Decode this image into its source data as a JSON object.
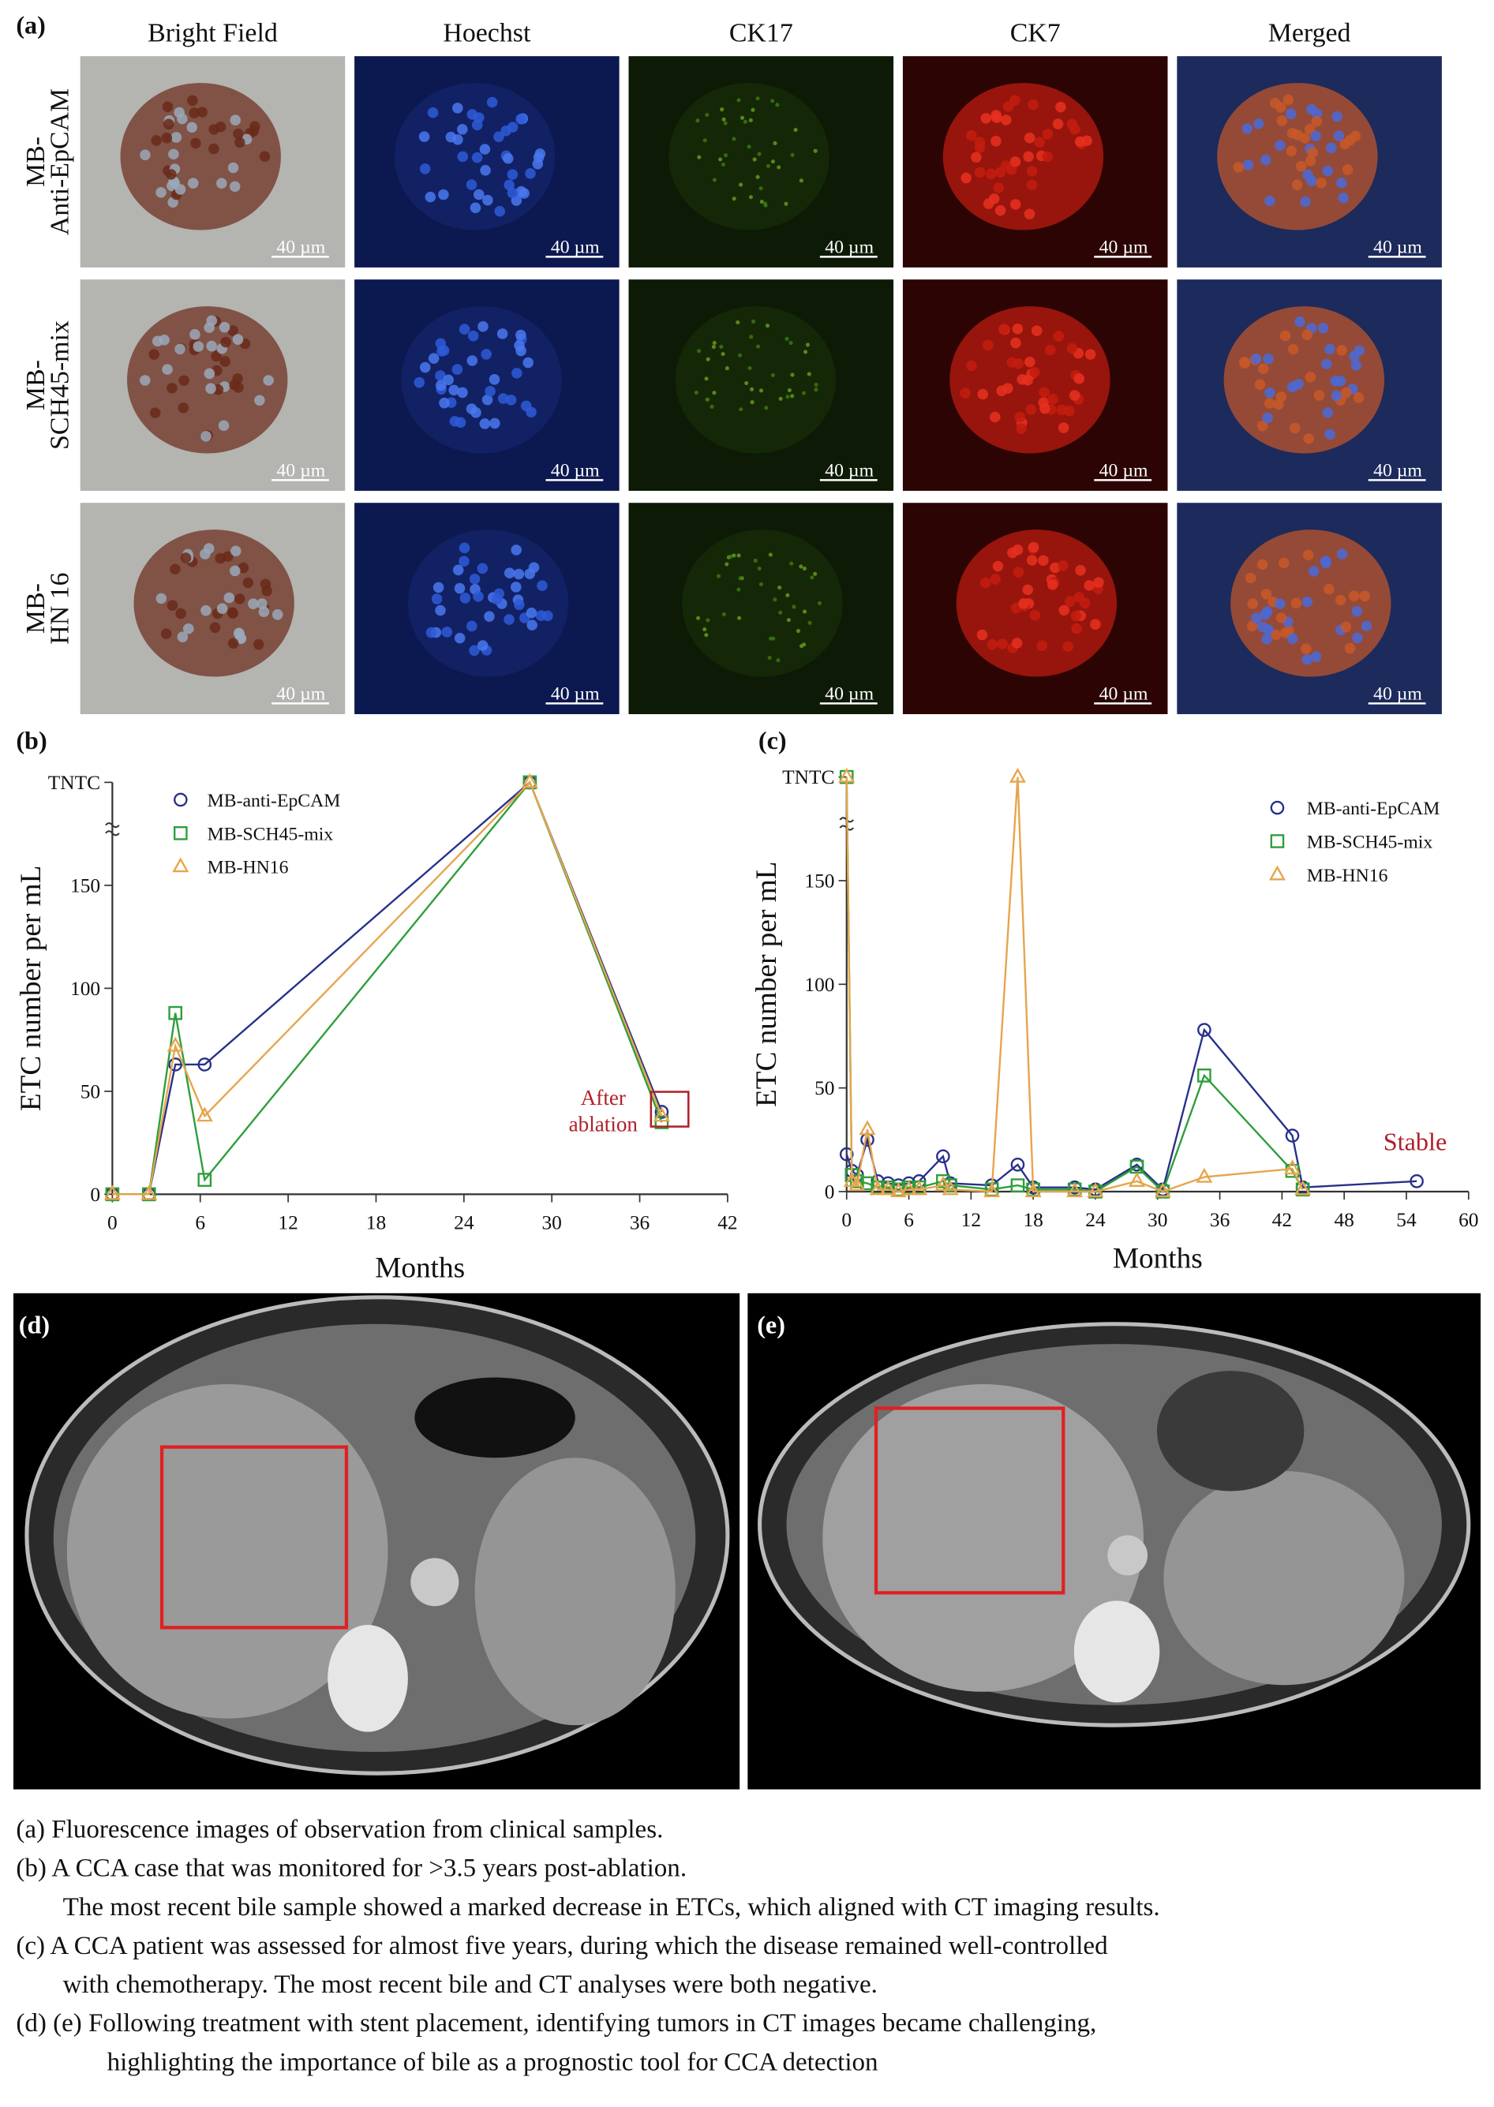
{
  "panel_labels": [
    "(a)",
    "(b)",
    "(c)",
    "(d)",
    "(e)"
  ],
  "micrographs": {
    "columns": [
      "Bright Field",
      "Hoechst",
      "CK17",
      "CK7",
      "Merged"
    ],
    "rows": [
      [
        "MB-",
        "Anti-EpCAM"
      ],
      [
        "MB-",
        "SCH45-mix"
      ],
      [
        "MB-",
        "HN 16"
      ]
    ],
    "scale_bar": "40 µm"
  },
  "chart_data": [
    {
      "type": "line",
      "x_label": "Months",
      "y_label": "ETC number per mL",
      "x": [
        0,
        2.5,
        4.3,
        6.3,
        28.5,
        37.5
      ],
      "xlim": [
        0,
        42
      ],
      "xticks": [
        0,
        6,
        12,
        18,
        24,
        30,
        36,
        42
      ],
      "ylim": [
        0,
        200
      ],
      "yticks": [
        0,
        50,
        100,
        150,
        {
          "value": 200,
          "label": "TNTC"
        }
      ],
      "legend": "upper left",
      "series": [
        {
          "name": "MB-anti-EpCAM",
          "color": "#27318a",
          "marker": "circle",
          "values": [
            0,
            0,
            63,
            63,
            200,
            40
          ]
        },
        {
          "name": "MB-SCH45-mix",
          "color": "#2e9e3a",
          "marker": "square",
          "values": [
            0,
            0,
            88,
            7,
            200,
            35
          ]
        },
        {
          "name": "MB-HN16",
          "color": "#e6a54c",
          "marker": "triangle",
          "values": [
            0,
            0,
            72,
            38,
            200,
            38
          ]
        }
      ],
      "annotation": [
        "After",
        "ablation"
      ],
      "annotation_color": "#b0202a"
    },
    {
      "type": "line",
      "x_label": "Months",
      "y_label": "ETC number per mL",
      "x": [
        0,
        0.5,
        1,
        2,
        3,
        4,
        5,
        6,
        7,
        9.3,
        10,
        14,
        16.5,
        18,
        22,
        24,
        28,
        30.5,
        34.5,
        43,
        44,
        55
      ],
      "xlim": [
        0,
        60
      ],
      "xticks": [
        0,
        6,
        12,
        18,
        24,
        30,
        36,
        42,
        48,
        54,
        60
      ],
      "ylim": [
        0,
        200
      ],
      "yticks": [
        0,
        50,
        100,
        150,
        {
          "value": 200,
          "label": "TNTC"
        }
      ],
      "legend": "upper right",
      "series": [
        {
          "name": "MB-anti-EpCAM",
          "color": "#27318a",
          "marker": "circle",
          "values": [
            18,
            10,
            8,
            25,
            5,
            4,
            3,
            4,
            5,
            17,
            4,
            3,
            13,
            2,
            2,
            1,
            13,
            1,
            78,
            27,
            2,
            5
          ]
        },
        {
          "name": "MB-SCH45-mix",
          "color": "#2e9e3a",
          "marker": "square",
          "values": [
            200,
            8,
            5,
            4,
            2,
            2,
            1,
            2,
            2,
            5,
            3,
            1,
            3,
            1,
            1,
            0,
            12,
            0,
            56,
            10,
            1,
            null
          ]
        },
        {
          "name": "MB-HN16",
          "color": "#e6a54c",
          "marker": "triangle",
          "values": [
            200,
            5,
            3,
            30,
            1,
            1,
            0,
            1,
            1,
            3,
            1,
            0,
            200,
            0,
            0,
            0,
            5,
            0,
            7,
            11,
            1,
            null
          ]
        }
      ],
      "annotation": [
        "Stable"
      ],
      "annotation_color": "#b0202a"
    }
  ],
  "caption": [
    "(a) Fluorescence images of observation from clinical samples.",
    "(b) A CCA case that was monitored for >3.5 years post-ablation.",
    "The most recent bile sample showed a marked decrease in ETCs, which aligned with CT imaging results.",
    "(c) A CCA patient was assessed for almost five years, during which the disease remained well-controlled",
    "with chemotherapy. The most recent bile and CT analyses were both negative.",
    "(d) (e) Following treatment with stent placement, identifying tumors in CT images became challenging,",
    "highlighting the importance of bile as a prognostic tool for CCA detection"
  ]
}
